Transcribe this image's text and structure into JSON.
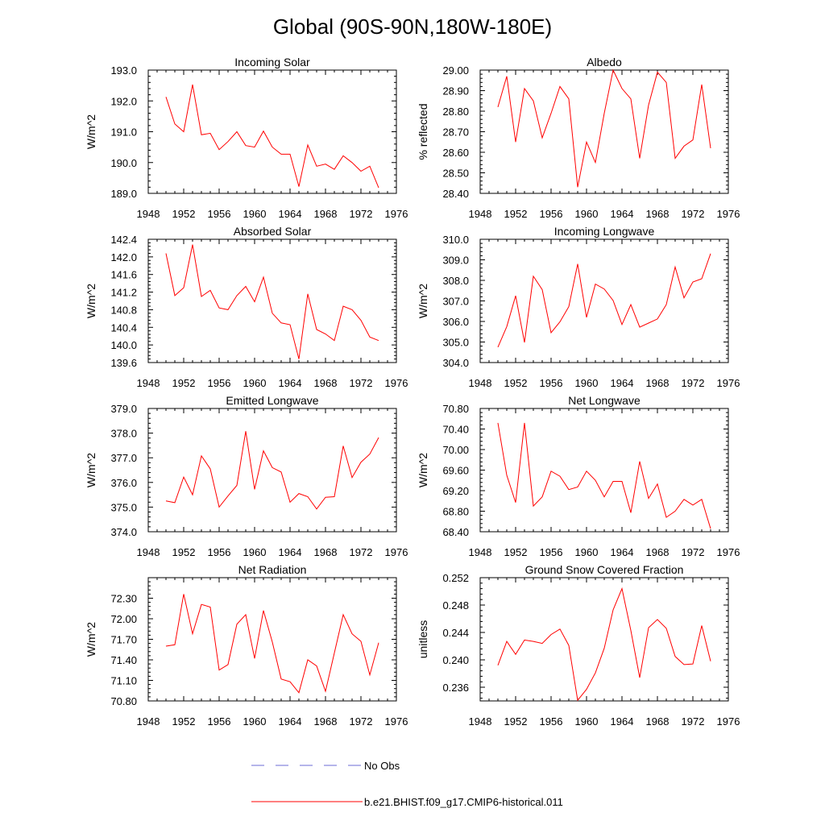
{
  "figure_title": "Global (90S-90N,180W-180E)",
  "legend": {
    "obs_label": "No Obs",
    "model_label": "b.e21.BHIST.f09_g17.CMIP6-historical.011",
    "obs_color": "#6b6bd6",
    "model_color": "#ff0000"
  },
  "chart_data": [
    {
      "type": "line",
      "title": "Incoming Solar",
      "xlabel": "",
      "ylabel": "W/m^2",
      "xlim": [
        1948,
        1976
      ],
      "ylim": [
        189.0,
        193.0
      ],
      "xticks": [
        "1948",
        "1952",
        "1956",
        "1960",
        "1964",
        "1968",
        "1972",
        "1976"
      ],
      "yticks": [
        "189.0",
        "190.0",
        "191.0",
        "192.0",
        "193.0"
      ],
      "x": [
        1950,
        1951,
        1952,
        1953,
        1954,
        1955,
        1956,
        1957,
        1958,
        1959,
        1960,
        1961,
        1962,
        1963,
        1964,
        1965,
        1966,
        1967,
        1968,
        1969,
        1970,
        1971,
        1972,
        1973,
        1974
      ],
      "series": [
        {
          "values": [
            192.13,
            191.25,
            191.0,
            192.53,
            190.9,
            190.95,
            190.42,
            190.68,
            191.0,
            190.55,
            190.5,
            191.02,
            190.5,
            190.27,
            190.27,
            189.22,
            190.57,
            189.88,
            189.95,
            189.78,
            190.22,
            190.0,
            189.72,
            189.88,
            189.18
          ]
        }
      ]
    },
    {
      "type": "line",
      "title": "Albedo",
      "xlabel": "",
      "ylabel": "% reflected",
      "xlim": [
        1948,
        1976
      ],
      "ylim": [
        28.4,
        29.0
      ],
      "xticks": [
        "1948",
        "1952",
        "1956",
        "1960",
        "1964",
        "1968",
        "1972",
        "1976"
      ],
      "yticks": [
        "28.40",
        "28.50",
        "28.60",
        "28.70",
        "28.80",
        "28.90",
        "29.00"
      ],
      "x": [
        1950,
        1951,
        1952,
        1953,
        1954,
        1955,
        1956,
        1957,
        1958,
        1959,
        1960,
        1961,
        1962,
        1963,
        1964,
        1965,
        1966,
        1967,
        1968,
        1969,
        1970,
        1971,
        1972,
        1973,
        1974
      ],
      "series": [
        {
          "values": [
            28.82,
            28.97,
            28.65,
            28.91,
            28.85,
            28.67,
            28.79,
            28.92,
            28.86,
            28.43,
            28.65,
            28.55,
            28.79,
            29.0,
            28.91,
            28.86,
            28.57,
            28.83,
            28.99,
            28.94,
            28.57,
            28.63,
            28.66,
            28.93,
            28.62
          ]
        }
      ]
    },
    {
      "type": "line",
      "title": "Absorbed Solar",
      "xlabel": "",
      "ylabel": "W/m^2",
      "xlim": [
        1948,
        1976
      ],
      "ylim": [
        139.6,
        142.4
      ],
      "xticks": [
        "1948",
        "1952",
        "1956",
        "1960",
        "1964",
        "1968",
        "1972",
        "1976"
      ],
      "yticks": [
        "139.6",
        "140.0",
        "140.4",
        "140.8",
        "141.2",
        "141.6",
        "142.0",
        "142.4"
      ],
      "x": [
        1950,
        1951,
        1952,
        1953,
        1954,
        1955,
        1956,
        1957,
        1958,
        1959,
        1960,
        1961,
        1962,
        1963,
        1964,
        1965,
        1966,
        1967,
        1968,
        1969,
        1970,
        1971,
        1972,
        1973,
        1974
      ],
      "series": [
        {
          "values": [
            142.08,
            141.12,
            141.3,
            142.28,
            141.1,
            141.24,
            140.84,
            140.8,
            141.12,
            141.33,
            140.98,
            141.54,
            140.72,
            140.5,
            140.46,
            139.68,
            141.16,
            140.35,
            140.25,
            140.1,
            140.88,
            140.8,
            140.56,
            140.18,
            140.1
          ]
        }
      ]
    },
    {
      "type": "line",
      "title": "Incoming Longwave",
      "xlabel": "",
      "ylabel": "W/m^2",
      "xlim": [
        1948,
        1976
      ],
      "ylim": [
        304.0,
        310.0
      ],
      "xticks": [
        "1948",
        "1952",
        "1956",
        "1960",
        "1964",
        "1968",
        "1972",
        "1976"
      ],
      "yticks": [
        "304.0",
        "305.0",
        "306.0",
        "307.0",
        "308.0",
        "309.0",
        "310.0"
      ],
      "x": [
        1950,
        1951,
        1952,
        1953,
        1954,
        1955,
        1956,
        1957,
        1958,
        1959,
        1960,
        1961,
        1962,
        1963,
        1964,
        1965,
        1966,
        1967,
        1968,
        1969,
        1970,
        1971,
        1972,
        1973,
        1974
      ],
      "series": [
        {
          "values": [
            304.75,
            305.75,
            307.25,
            304.98,
            308.2,
            307.55,
            305.45,
            305.98,
            306.72,
            308.8,
            306.2,
            307.82,
            307.58,
            307.02,
            305.85,
            306.82,
            305.72,
            305.92,
            306.12,
            306.82,
            308.65,
            307.15,
            307.92,
            308.08,
            309.3
          ]
        }
      ]
    },
    {
      "type": "line",
      "title": "Emitted Longwave",
      "xlabel": "",
      "ylabel": "W/m^2",
      "xlim": [
        1948,
        1976
      ],
      "ylim": [
        374.0,
        379.0
      ],
      "xticks": [
        "1948",
        "1952",
        "1956",
        "1960",
        "1964",
        "1968",
        "1972",
        "1976"
      ],
      "yticks": [
        "374.0",
        "375.0",
        "376.0",
        "377.0",
        "378.0",
        "379.0"
      ],
      "x": [
        1950,
        1951,
        1952,
        1953,
        1954,
        1955,
        1956,
        1957,
        1958,
        1959,
        1960,
        1961,
        1962,
        1963,
        1964,
        1965,
        1966,
        1967,
        1968,
        1969,
        1970,
        1971,
        1972,
        1973,
        1974
      ],
      "series": [
        {
          "values": [
            375.25,
            375.18,
            376.22,
            375.5,
            377.08,
            376.55,
            375.0,
            375.45,
            375.88,
            378.08,
            375.72,
            377.28,
            376.6,
            376.42,
            375.2,
            375.55,
            375.42,
            374.92,
            375.4,
            375.42,
            377.48,
            376.2,
            376.82,
            377.15,
            377.82
          ]
        }
      ]
    },
    {
      "type": "line",
      "title": "Net Longwave",
      "xlabel": "",
      "ylabel": "W/m^2",
      "xlim": [
        1948,
        1976
      ],
      "ylim": [
        68.4,
        70.8
      ],
      "xticks": [
        "1948",
        "1952",
        "1956",
        "1960",
        "1964",
        "1968",
        "1972",
        "1976"
      ],
      "yticks": [
        "68.40",
        "68.80",
        "69.20",
        "69.60",
        "70.00",
        "70.40",
        "70.80"
      ],
      "x": [
        1950,
        1951,
        1952,
        1953,
        1954,
        1955,
        1956,
        1957,
        1958,
        1959,
        1960,
        1961,
        1962,
        1963,
        1964,
        1965,
        1966,
        1967,
        1968,
        1969,
        1970,
        1971,
        1972,
        1973,
        1974
      ],
      "series": [
        {
          "values": [
            70.52,
            69.5,
            68.97,
            70.52,
            68.9,
            69.08,
            69.58,
            69.48,
            69.22,
            69.27,
            69.58,
            69.4,
            69.08,
            69.38,
            69.38,
            68.77,
            69.77,
            69.05,
            69.33,
            68.68,
            68.8,
            69.03,
            68.92,
            69.03,
            68.46
          ]
        }
      ]
    },
    {
      "type": "line",
      "title": "Net Radiation",
      "xlabel": "",
      "ylabel": "W/m^2",
      "xlim": [
        1948,
        1976
      ],
      "ylim": [
        70.8,
        72.6
      ],
      "xticks": [
        "1948",
        "1952",
        "1956",
        "1960",
        "1964",
        "1968",
        "1972",
        "1976"
      ],
      "yticks": [
        "70.80",
        "71.10",
        "71.40",
        "71.70",
        "72.00",
        "72.30"
      ],
      "x": [
        1950,
        1951,
        1952,
        1953,
        1954,
        1955,
        1956,
        1957,
        1958,
        1959,
        1960,
        1961,
        1962,
        1963,
        1964,
        1965,
        1966,
        1967,
        1968,
        1969,
        1970,
        1971,
        1972,
        1973,
        1974
      ],
      "series": [
        {
          "values": [
            71.6,
            71.62,
            72.36,
            71.78,
            72.21,
            72.17,
            71.25,
            71.33,
            71.92,
            72.06,
            71.42,
            72.12,
            71.66,
            71.12,
            71.08,
            70.92,
            71.4,
            71.31,
            70.94,
            71.5,
            72.06,
            71.78,
            71.67,
            71.18,
            71.65
          ]
        }
      ]
    },
    {
      "type": "line",
      "title": "Ground Snow Covered Fraction",
      "xlabel": "",
      "ylabel": "unitless",
      "xlim": [
        1948,
        1976
      ],
      "ylim": [
        0.234,
        0.252
      ],
      "xticks": [
        "1948",
        "1952",
        "1956",
        "1960",
        "1964",
        "1968",
        "1972",
        "1976"
      ],
      "yticks": [
        "0.236",
        "0.240",
        "0.244",
        "0.248",
        "0.252"
      ],
      "x": [
        1950,
        1951,
        1952,
        1953,
        1954,
        1955,
        1956,
        1957,
        1958,
        1959,
        1960,
        1961,
        1962,
        1963,
        1964,
        1965,
        1966,
        1967,
        1968,
        1969,
        1970,
        1971,
        1972,
        1973,
        1974
      ],
      "series": [
        {
          "values": [
            0.2392,
            0.2427,
            0.2408,
            0.2429,
            0.2427,
            0.2424,
            0.2437,
            0.2445,
            0.2421,
            0.2341,
            0.2357,
            0.2381,
            0.2417,
            0.2473,
            0.2504,
            0.2443,
            0.2374,
            0.2447,
            0.2459,
            0.2446,
            0.2405,
            0.2393,
            0.2394,
            0.245,
            0.2398
          ]
        }
      ]
    }
  ]
}
